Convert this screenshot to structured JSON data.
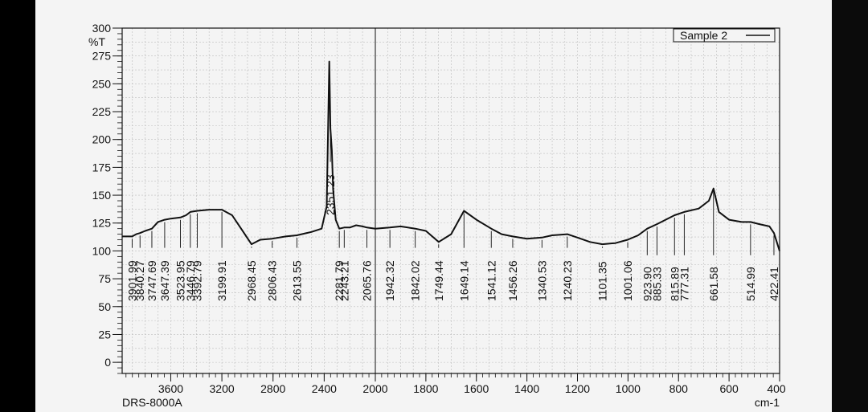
{
  "chart_data": {
    "type": "line",
    "ylabel": "%T",
    "xlabel": "cm-1",
    "footer_left": "DRS-8000A",
    "legend": [
      {
        "label": "Sample 2"
      }
    ],
    "xlim": [
      3980,
      400
    ],
    "ylim": [
      -10,
      300
    ],
    "x_ticks": [
      3600,
      3200,
      2800,
      2400,
      2000,
      1800,
      1600,
      1400,
      1200,
      1000,
      800,
      600,
      400
    ],
    "y_ticks": [
      0,
      25,
      50,
      75,
      100,
      125,
      150,
      175,
      200,
      225,
      250,
      275,
      300
    ],
    "series": [
      {
        "name": "Sample 2",
        "x": [
          3980,
          3901.99,
          3870,
          3840.27,
          3800,
          3747.69,
          3700,
          3647.39,
          3600,
          3523.95,
          3480,
          3446.79,
          3392.79,
          3300,
          3199.91,
          3120,
          3050,
          2968.45,
          2900,
          2806.43,
          2700,
          2613.55,
          2500,
          2420,
          2380,
          2360,
          2351.23,
          2340,
          2330,
          2310,
          2281.79,
          2243.21,
          2200,
          2150,
          2100,
          2065.76,
          2000,
          1942.32,
          1900,
          1842.02,
          1800,
          1749.44,
          1700,
          1649.14,
          1600,
          1541.12,
          1500,
          1456.26,
          1400,
          1340.53,
          1300,
          1240.23,
          1200,
          1150,
          1101.35,
          1050,
          1001.06,
          960,
          923.9,
          885.33,
          815.89,
          777.31,
          720,
          680,
          661.58,
          640,
          600,
          550,
          514.99,
          480,
          440,
          422.41,
          400
        ],
        "y": [
          113,
          113,
          115,
          116,
          118,
          120,
          126,
          128,
          129,
          130,
          132,
          135,
          136,
          137,
          137,
          132,
          120,
          106,
          110,
          111,
          113,
          114,
          117,
          120,
          140,
          270,
          210,
          190,
          155,
          128,
          120,
          121,
          121,
          123,
          122,
          121,
          120,
          121,
          122,
          120,
          118,
          108,
          115,
          136,
          128,
          120,
          115,
          113,
          111,
          112,
          114,
          115,
          112,
          108,
          106,
          107,
          110,
          114,
          120,
          124,
          132,
          135,
          138,
          145,
          156,
          135,
          128,
          126,
          126,
          124,
          122,
          116,
          100
        ]
      }
    ],
    "peak_labels": [
      "3901.99",
      "3840.27",
      "3747.69",
      "3647.39",
      "3523.95",
      "3446.79",
      "3392.79",
      "3199.91",
      "2968.45",
      "2806.43",
      "2613.55",
      "2351.23",
      "2281.79",
      "2243.21",
      "2065.76",
      "1942.32",
      "1842.02",
      "1749.44",
      "1649.14",
      "1541.12",
      "1456.26",
      "1340.53",
      "1240.23",
      "1101.35",
      "1001.06",
      "923.90",
      "885.33",
      "815.89",
      "777.31",
      "661.58",
      "514.99",
      "422.41"
    ]
  }
}
